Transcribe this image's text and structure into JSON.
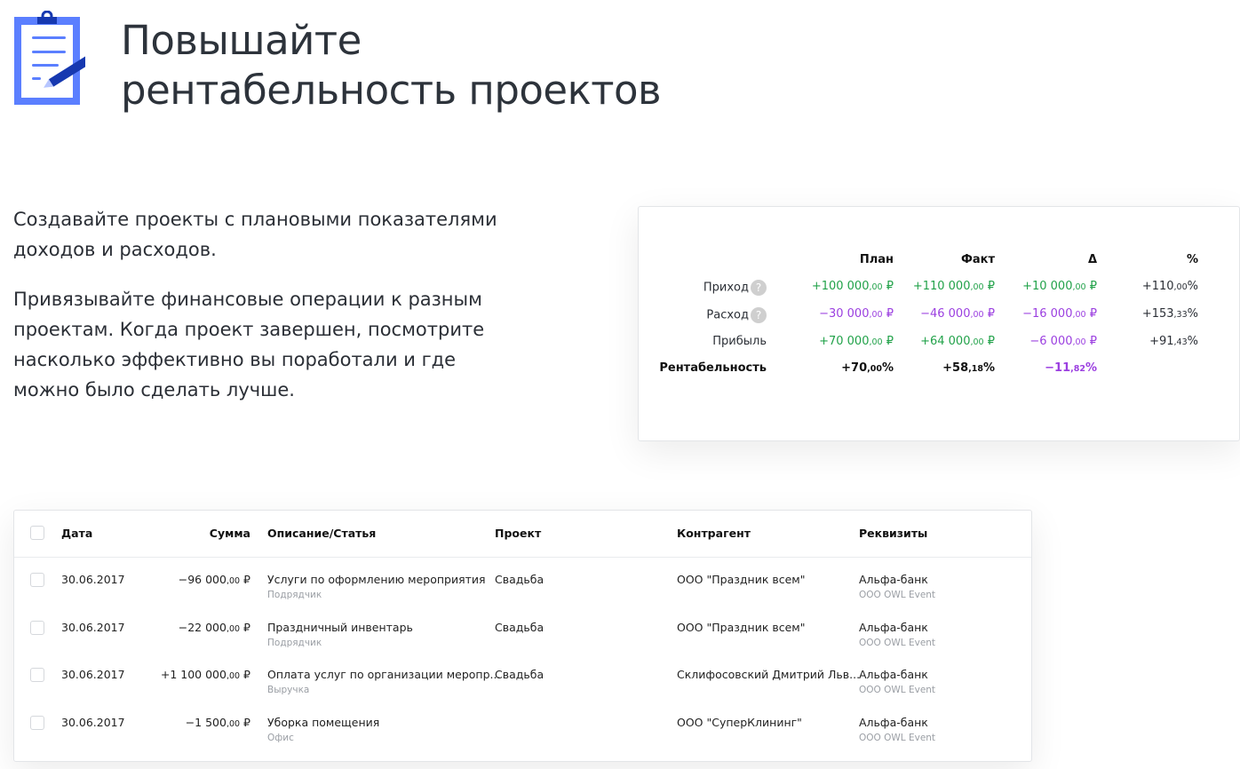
{
  "header": {
    "title_line1": "Повышайте",
    "title_line2": "рентабельность проектов",
    "icon": "clipboard-pencil-icon"
  },
  "intro": {
    "p1_line1": "Создавайте проекты с плановыми показателями",
    "p1_line2": "доходов и расходов.",
    "p2_line1": "Привязывайте финансовые операции к разным",
    "p2_line2": "проектам. Когда проект завершен, посмотрите",
    "p2_line3": "насколько эффективно вы поработали и где",
    "p2_line4": "можно было сделать лучше."
  },
  "summary": {
    "columns": [
      "План",
      "Факт",
      "Δ",
      "%"
    ],
    "rows": [
      {
        "label": "Приход",
        "help": "?",
        "cells": [
          {
            "m": "+100 000",
            "c": ",00",
            "u": " ₽",
            "color": "green"
          },
          {
            "m": "+110 000",
            "c": ",00",
            "u": " ₽",
            "color": "green"
          },
          {
            "m": "+10 000",
            "c": ",00",
            "u": " ₽",
            "color": "green"
          },
          {
            "m": "+110",
            "c": ",00",
            "u": "%",
            "color": "dark"
          }
        ]
      },
      {
        "label": "Расход",
        "help": "?",
        "cells": [
          {
            "m": "−30 000",
            "c": ",00",
            "u": " ₽",
            "color": "purple"
          },
          {
            "m": "−46 000",
            "c": ",00",
            "u": " ₽",
            "color": "purple"
          },
          {
            "m": "−16 000",
            "c": ",00",
            "u": " ₽",
            "color": "purple"
          },
          {
            "m": "+153",
            "c": ",33",
            "u": "%",
            "color": "dark"
          }
        ]
      },
      {
        "label": "Прибыль",
        "cells": [
          {
            "m": "+70 000",
            "c": ",00",
            "u": " ₽",
            "color": "green"
          },
          {
            "m": "+64 000",
            "c": ",00",
            "u": " ₽",
            "color": "green"
          },
          {
            "m": "−6 000",
            "c": ",00",
            "u": " ₽",
            "color": "purple"
          },
          {
            "m": "+91",
            "c": ",43",
            "u": "%",
            "color": "dark"
          }
        ]
      },
      {
        "label": "Рентабельность",
        "bold": true,
        "cells": [
          {
            "m": "+70",
            "c": ",00",
            "u": "%",
            "color": "bold"
          },
          {
            "m": "+58",
            "c": ",18",
            "u": "%",
            "color": "bold"
          },
          {
            "m": "−11",
            "c": ",82",
            "u": "%",
            "color": "purple-bold"
          }
        ]
      }
    ]
  },
  "operations": {
    "columns": {
      "date": "Дата",
      "sum": "Сумма",
      "desc": "Описание/Статья",
      "project": "Проект",
      "contragent": "Контрагент",
      "requisites": "Реквизиты"
    },
    "rows": [
      {
        "date": "30.06.2017",
        "sum": "−96 000",
        "cents": ",00",
        "cur": " ₽",
        "color": "purple",
        "desc": "Услуги по оформлению мероприятия",
        "cat": "Подрядчик",
        "project": "Свадьба",
        "contragent": "ООО \"Праздник всем\"",
        "bank": "Альфа-банк",
        "company": "ООО OWL Event"
      },
      {
        "date": "30.06.2017",
        "sum": "−22 000",
        "cents": ",00",
        "cur": " ₽",
        "color": "purple",
        "desc": "Праздничный инвентарь",
        "cat": "Подрядчик",
        "project": "Свадьба",
        "contragent": "ООО \"Праздник всем\"",
        "bank": "Альфа-банк",
        "company": "ООО OWL Event"
      },
      {
        "date": "30.06.2017",
        "sum": "+1 100 000",
        "cents": ",00",
        "cur": " ₽",
        "color": "green",
        "desc": "Оплата услуг по организации меропр...",
        "cat": "Выручка",
        "project": "Свадьба",
        "contragent": "Склифосовский Дмитрий Льв...",
        "bank": "Альфа-банк",
        "company": "ООО OWL Event"
      },
      {
        "date": "30.06.2017",
        "sum": "−1 500",
        "cents": ",00",
        "cur": " ₽",
        "color": "purple",
        "desc": "Уборка помещения",
        "cat": "Офис",
        "project": "",
        "contragent": "ООО \"СуперКлининг\"",
        "bank": "Альфа-банк",
        "company": "ООО OWL Event"
      }
    ]
  },
  "colors": {
    "green": "#22a24a",
    "purple": "#9b3fe0",
    "accent": "#5b7cff",
    "dark_blue": "#1a3bb3"
  }
}
